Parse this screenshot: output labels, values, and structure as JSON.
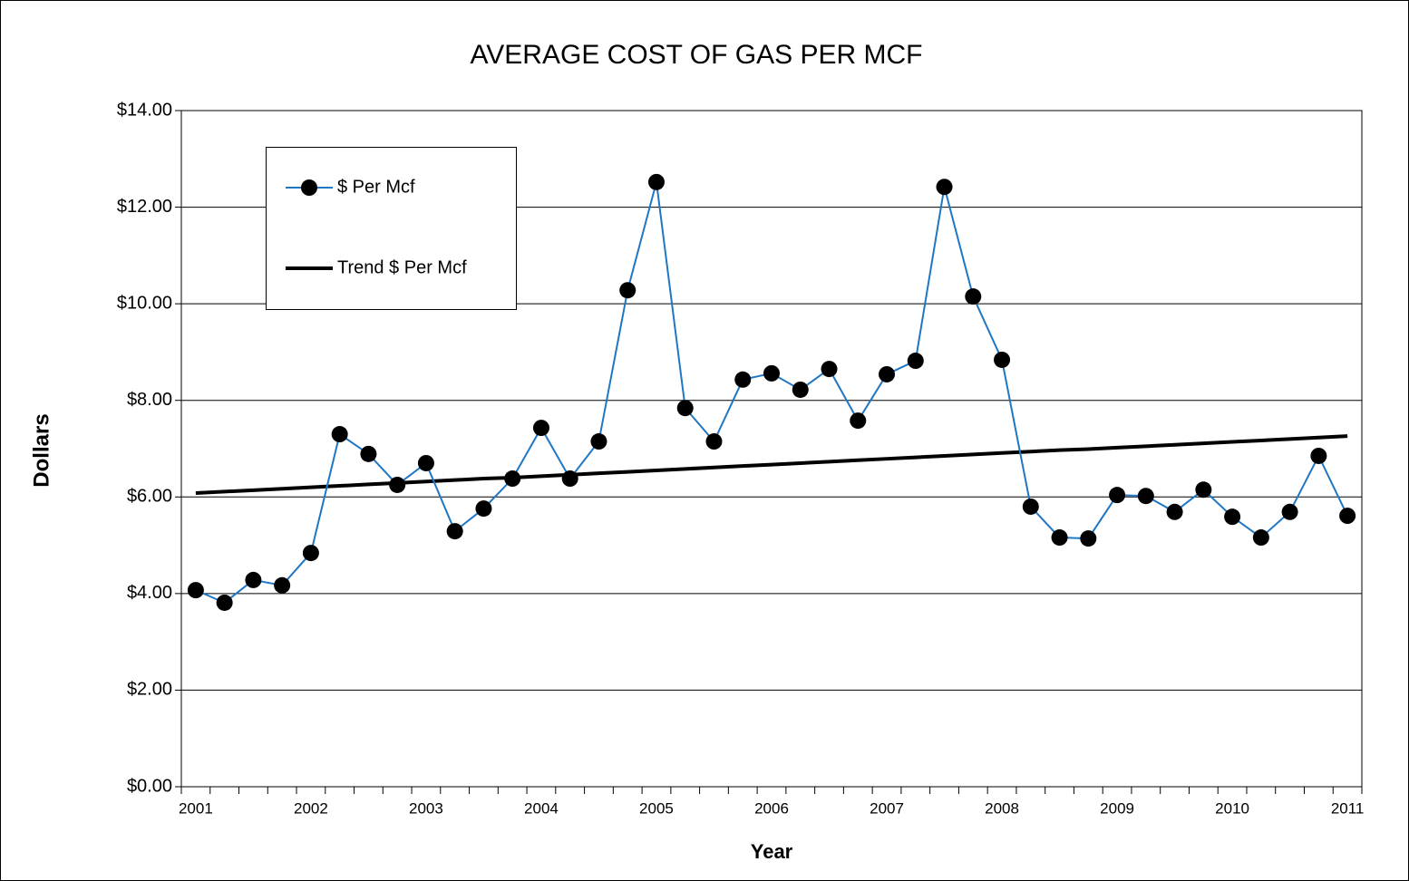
{
  "chart_data": {
    "type": "line",
    "title": "AVERAGE COST OF GAS PER MCF",
    "x_label": "Year",
    "y_label": "Dollars",
    "categories": [
      "2001",
      null,
      null,
      null,
      "2002",
      null,
      null,
      null,
      "2003",
      null,
      null,
      null,
      "2004",
      null,
      null,
      null,
      "2005",
      null,
      null,
      null,
      "2006",
      null,
      null,
      null,
      "2007",
      null,
      null,
      null,
      "2008",
      null,
      null,
      null,
      "2009",
      null,
      null,
      null,
      "2010",
      null,
      null,
      null,
      "2011"
    ],
    "series": [
      {
        "name": "$ Per Mcf",
        "color": "#1f77c4",
        "marker": true,
        "values": [
          4.07,
          3.81,
          4.28,
          4.17,
          4.84,
          7.3,
          6.89,
          6.25,
          6.7,
          5.29,
          5.76,
          6.38,
          7.43,
          6.38,
          7.15,
          10.28,
          12.52,
          7.84,
          7.15,
          8.43,
          8.56,
          8.22,
          8.65,
          7.58,
          8.54,
          8.82,
          12.42,
          10.15,
          8.84,
          5.8,
          5.16,
          5.14,
          6.04,
          6.02,
          5.69,
          6.15,
          5.59,
          5.16,
          5.69,
          6.85,
          5.61
        ]
      },
      {
        "name": "Trend $ Per Mcf",
        "color": "#000000",
        "marker": false,
        "values": [
          6.08,
          6.11,
          6.14,
          6.17,
          6.2,
          6.23,
          6.26,
          6.29,
          6.32,
          6.35,
          6.38,
          6.4,
          6.43,
          6.46,
          6.49,
          6.52,
          6.55,
          6.58,
          6.61,
          6.64,
          6.67,
          6.7,
          6.73,
          6.76,
          6.79,
          6.82,
          6.85,
          6.88,
          6.91,
          6.94,
          6.97,
          6.99,
          7.02,
          7.05,
          7.08,
          7.11,
          7.14,
          7.17,
          7.2,
          7.23,
          7.26
        ]
      }
    ],
    "ylim": [
      0,
      14
    ],
    "yticks": [
      {
        "value": 0,
        "label": "$0.00"
      },
      {
        "value": 2,
        "label": "$2.00"
      },
      {
        "value": 4,
        "label": "$4.00"
      },
      {
        "value": 6,
        "label": "$6.00"
      },
      {
        "value": 8,
        "label": "$8.00"
      },
      {
        "value": 10,
        "label": "$10.00"
      },
      {
        "value": 12,
        "label": "$12.00"
      },
      {
        "value": 14,
        "label": "$14.00"
      }
    ],
    "grid": true,
    "legend": "upper-left"
  }
}
